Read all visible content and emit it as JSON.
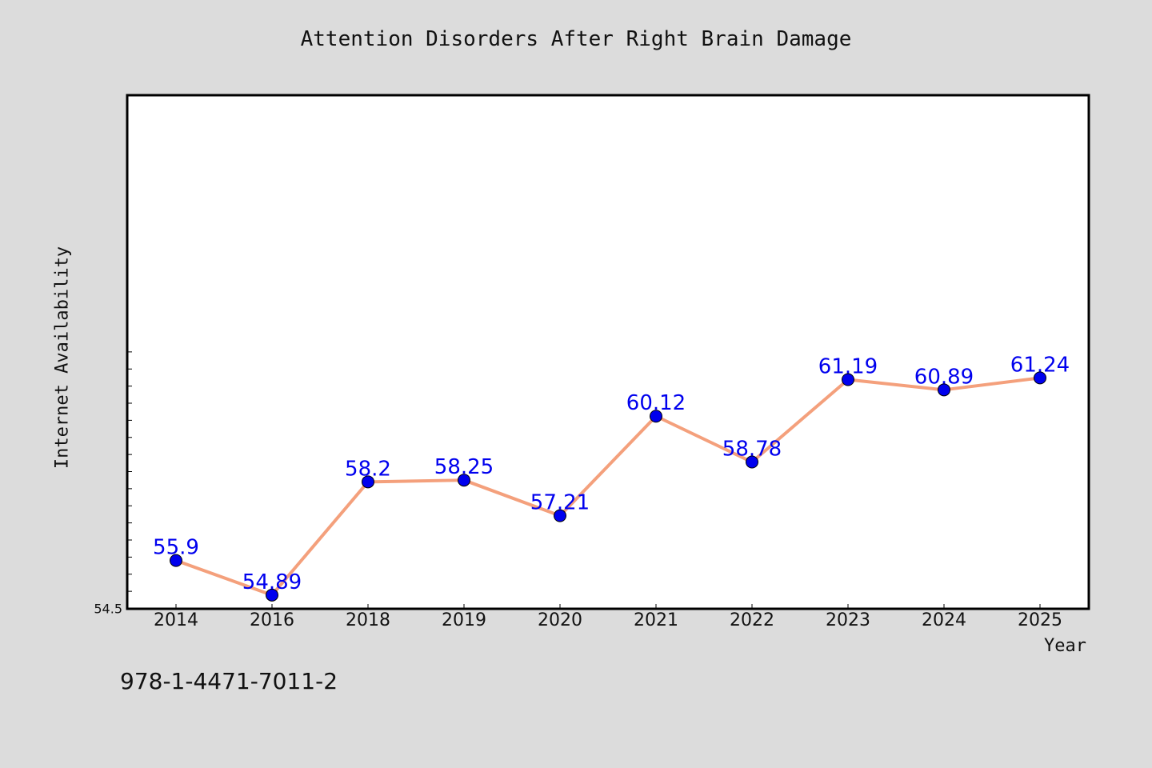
{
  "chart_data": {
    "type": "line",
    "title": "Attention Disorders After Right Brain Damage",
    "xlabel": "Year",
    "ylabel": "Internet Availability",
    "categories": [
      "2014",
      "2016",
      "2018",
      "2019",
      "2020",
      "2021",
      "2022",
      "2023",
      "2024",
      "2025"
    ],
    "series": [
      {
        "values": [
          55.9,
          54.89,
          58.2,
          58.25,
          57.21,
          60.12,
          58.78,
          61.19,
          60.89,
          61.24
        ],
        "labels": [
          "55.9",
          "54.89",
          "58.2",
          "58.25",
          "57.21",
          "60.12",
          "58.78",
          "61.19",
          "60.89",
          "61.24"
        ],
        "line_color": "#f4a07c",
        "marker_color": "#0000ee",
        "label_color": "#0000ee"
      }
    ],
    "ylim": [
      54.5,
      62.0
    ],
    "ytick_labels": [
      "54.5"
    ],
    "grid": false,
    "legend": "none"
  },
  "footer": {
    "isbn": "978-1-4471-7011-2"
  },
  "colors": {
    "background": "#dcdcdc",
    "plot_background": "#ffffff"
  }
}
